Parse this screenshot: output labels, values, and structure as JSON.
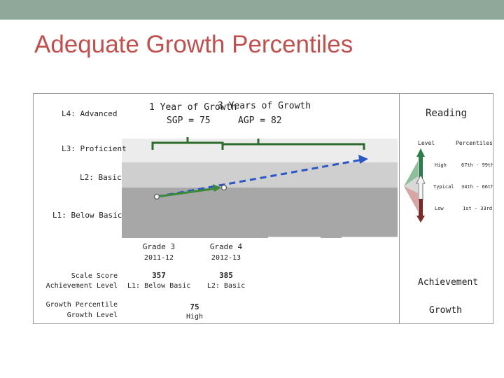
{
  "slide": {
    "title": "Adequate Growth Percentiles",
    "accent_color": "#c0504d",
    "topbar_color": "#8fa89a"
  },
  "levels": {
    "l4": "L4: Advanced",
    "l3": "L3: Proficient",
    "l2": "L2: Basic",
    "l1": "L1: Below Basic"
  },
  "annotations": {
    "one_year": "1 Year of Growth",
    "sgp": "SGP = 75",
    "three_years": "3 Years of Growth",
    "agp": "AGP = 82"
  },
  "legend": {
    "reading": "Reading",
    "col_level": "Level",
    "col_percentiles": "Percentiles",
    "rows": [
      {
        "level": "High",
        "range": "67th - 99th",
        "color": "#2e7d4f"
      },
      {
        "level": "Typical",
        "range": "34th - 66th",
        "color": "#f2f2f2"
      },
      {
        "level": "Low",
        "range": "1st - 33rd",
        "color": "#7b2c2c"
      }
    ],
    "achievement": "Achievement",
    "growth": "Growth"
  },
  "table": {
    "grades": [
      {
        "grade": "Grade 3",
        "year": "2011-12",
        "scale_score": "357",
        "achievement_level": "L1: Below Basic"
      },
      {
        "grade": "Grade 4",
        "year": "2012-13",
        "scale_score": "385",
        "achievement_level": "L2: Basic"
      }
    ],
    "row_scale": "Scale Score",
    "row_achievement": "Achievement Level",
    "row_growth_pct": "Growth Percentile",
    "row_growth_lvl": "Growth Level",
    "growth_percentile": "75",
    "growth_level": "High"
  },
  "trajectory": {
    "actual_color": "#3a8a3a",
    "projection_color": "#2a56c6",
    "bracket_color": "#2e6b2e"
  }
}
